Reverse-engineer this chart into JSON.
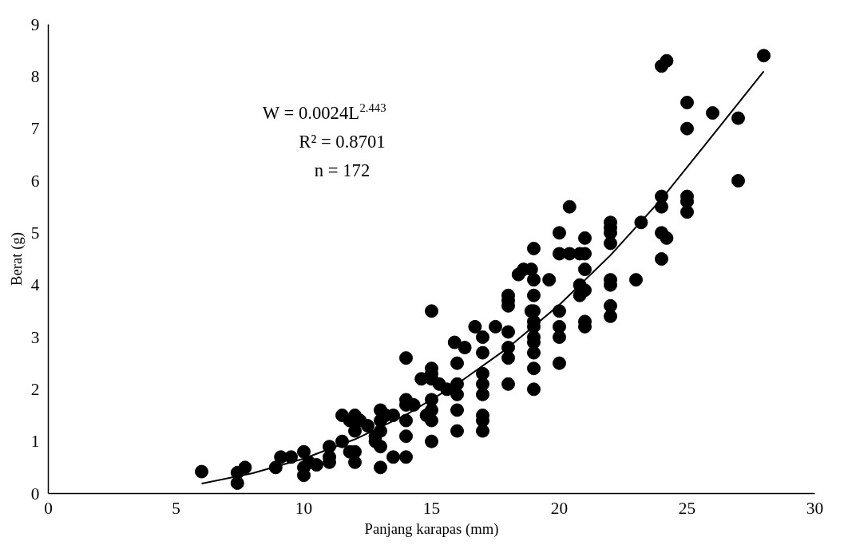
{
  "chart_data": {
    "type": "scatter",
    "xlabel": "Panjang karapas (mm)",
    "ylabel": "Berat (g)",
    "annotations": [
      "W = 0.0024L$^{2.443}$",
      "R² = 0.8701",
      "n = 172"
    ],
    "xlim": [
      0,
      30
    ],
    "xticks": [
      0,
      5,
      10,
      15,
      20,
      25,
      30
    ],
    "ylim": [
      0,
      9
    ],
    "yticks": [
      0,
      1,
      2,
      3,
      4,
      5,
      6,
      7,
      8,
      9
    ],
    "grid": false,
    "series": [
      {
        "marker": "circle",
        "color": "#000000",
        "x": [
          6,
          7.4,
          7.4,
          7.7,
          8.9,
          9.1,
          9.5,
          10,
          10,
          10,
          10.2,
          10.5,
          11,
          11,
          11,
          11.5,
          11.5,
          11.8,
          11.8,
          12,
          12,
          12,
          12,
          12.2,
          12.5,
          12.8,
          12.8,
          13,
          13,
          13,
          13,
          13,
          13.2,
          13.5,
          13.5,
          14,
          14,
          14,
          14,
          14,
          14,
          14.3,
          14.6,
          14.8,
          15,
          15,
          15,
          15,
          15,
          15,
          15,
          15,
          15.3,
          15.6,
          15.9,
          16,
          16,
          16,
          16,
          16,
          16.3,
          16.7,
          17,
          17,
          17,
          17,
          17,
          17,
          17,
          17,
          17.5,
          18,
          18,
          18,
          18,
          18,
          18,
          18,
          18.4,
          18.6,
          18.9,
          18.9,
          19,
          19,
          19,
          19,
          19,
          19,
          19,
          19,
          19,
          19,
          19,
          19.6,
          20,
          20,
          20,
          20,
          20,
          20,
          20.4,
          20.4,
          20.8,
          20.8,
          20.8,
          21,
          21,
          21,
          21,
          21,
          21,
          22,
          22,
          22,
          22,
          22,
          22,
          22,
          22,
          23,
          23.2,
          24,
          24,
          24,
          24,
          24,
          24.2,
          24.2,
          25,
          25,
          25,
          25,
          25,
          26,
          27,
          27,
          28
        ],
        "values": [
          0.42,
          0.4,
          0.2,
          0.5,
          0.5,
          0.7,
          0.7,
          0.8,
          0.5,
          0.35,
          0.6,
          0.55,
          0.9,
          0.7,
          0.6,
          1.0,
          1.5,
          1.4,
          0.8,
          1.5,
          1.2,
          0.8,
          0.6,
          1.4,
          1.3,
          1.1,
          1.0,
          1.6,
          1.4,
          1.2,
          0.9,
          0.5,
          1.5,
          1.5,
          0.7,
          2.6,
          1.8,
          1.7,
          1.4,
          1.1,
          0.7,
          1.7,
          2.2,
          1.5,
          3.5,
          2.4,
          2.3,
          2.2,
          1.8,
          1.6,
          1.4,
          1.0,
          2.1,
          2.0,
          2.9,
          2.5,
          2.1,
          1.9,
          1.6,
          1.2,
          2.8,
          3.2,
          3.0,
          2.7,
          2.3,
          2.1,
          1.9,
          1.5,
          1.4,
          1.2,
          3.2,
          3.8,
          3.7,
          3.6,
          3.1,
          2.8,
          2.6,
          2.1,
          4.2,
          4.3,
          4.3,
          3.5,
          4.7,
          4.1,
          3.8,
          3.5,
          3.3,
          3.2,
          3.0,
          2.9,
          2.7,
          2.4,
          2.0,
          4.1,
          4.6,
          5.0,
          3.5,
          3.2,
          3.0,
          2.5,
          5.5,
          4.6,
          4.6,
          4.0,
          3.8,
          4.9,
          4.6,
          4.3,
          3.9,
          3.3,
          3.2,
          5.2,
          5.1,
          5.0,
          4.8,
          4.1,
          4.0,
          3.6,
          3.4,
          4.1,
          5.2,
          8.2,
          5.7,
          5.5,
          5.0,
          4.5,
          8.3,
          4.9,
          7.5,
          7.0,
          5.7,
          5.6,
          5.4,
          7.3,
          7.2,
          6.0,
          8.4
        ]
      },
      {
        "type": "line",
        "color": "#000000",
        "x": [
          6,
          8,
          10,
          12,
          14,
          16,
          18,
          20,
          22,
          24,
          26,
          28
        ],
        "values": [
          0.19,
          0.39,
          0.67,
          1.04,
          1.51,
          2.1,
          2.8,
          3.62,
          4.57,
          5.65,
          6.87,
          8.1
        ]
      }
    ]
  }
}
